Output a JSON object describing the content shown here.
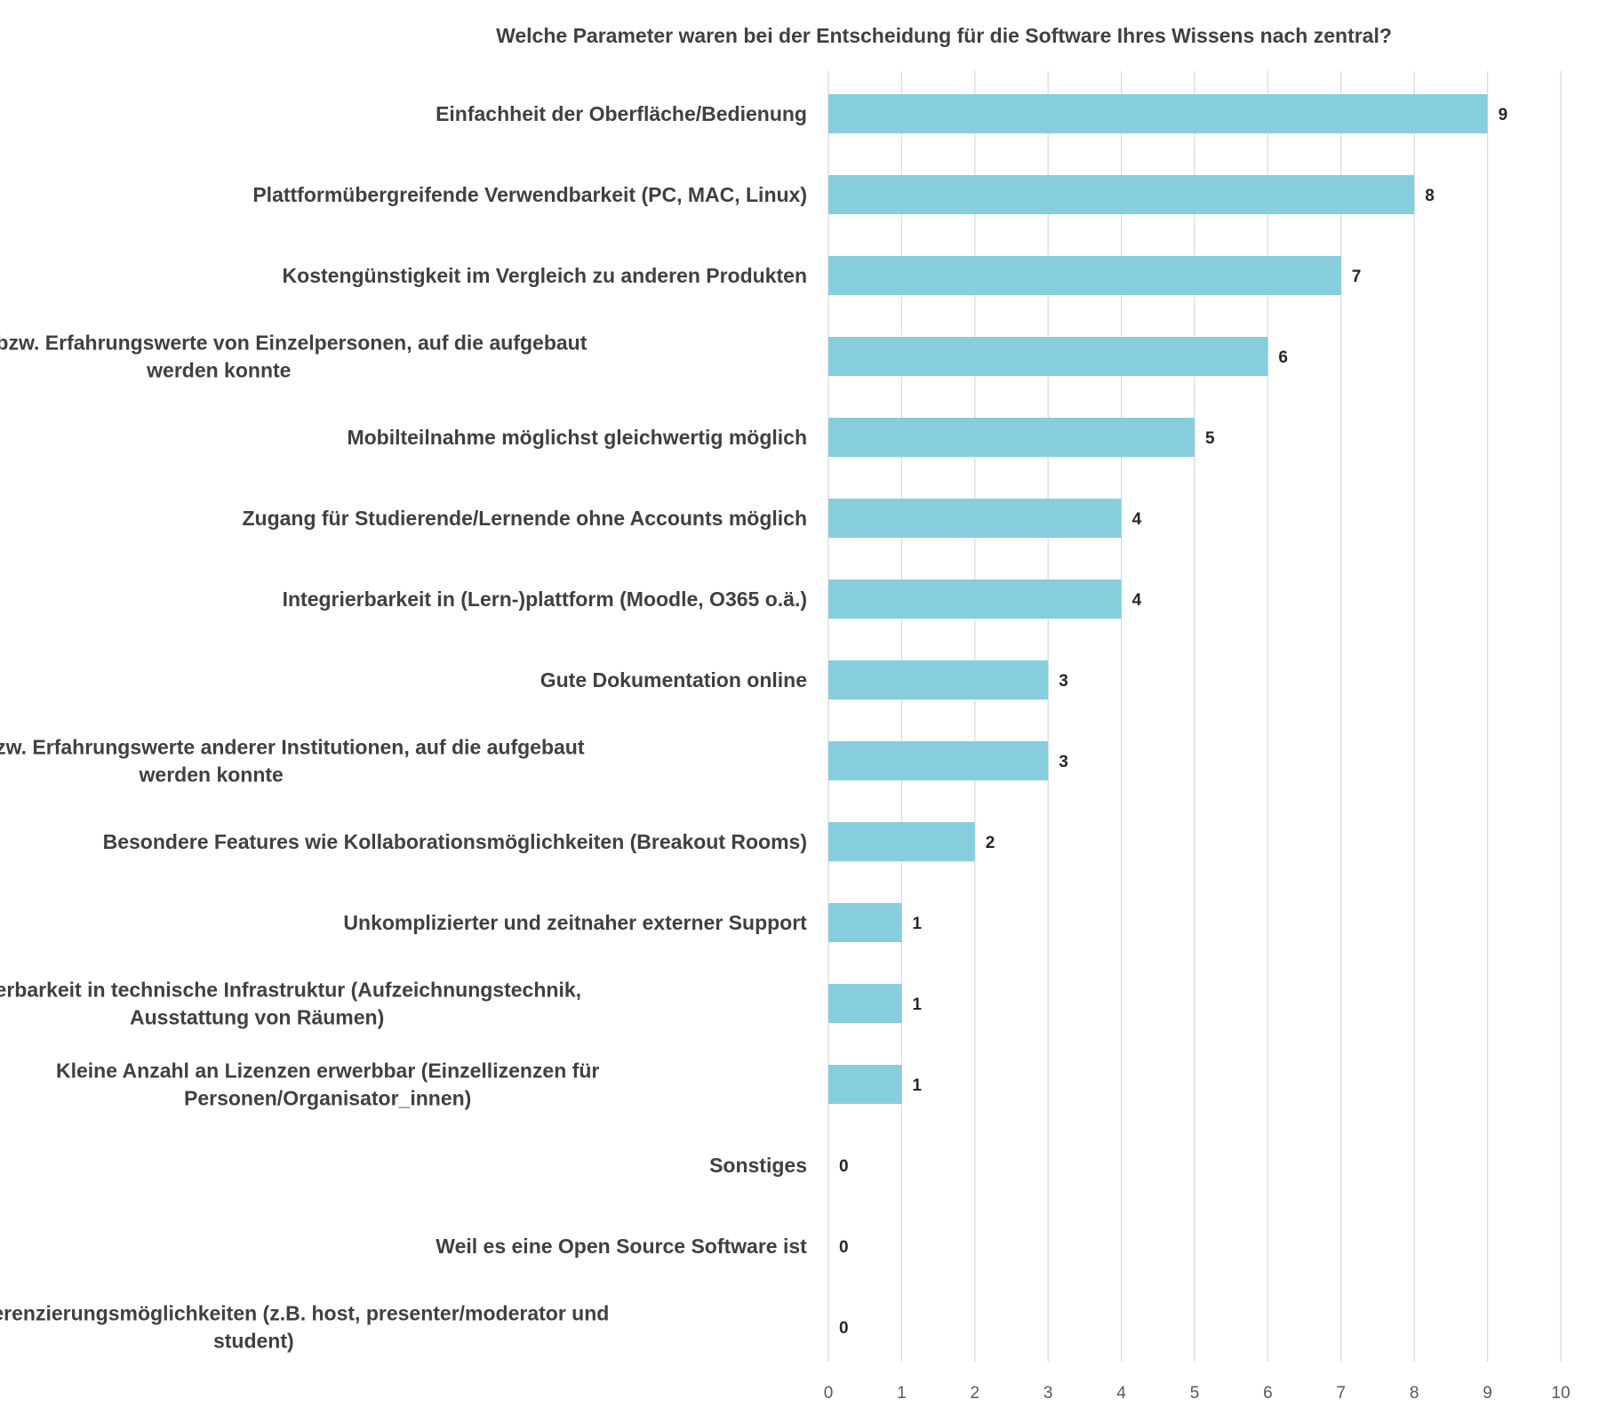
{
  "chart_data": {
    "type": "bar",
    "orientation": "horizontal",
    "title": "Welche Parameter waren bei der Entscheidung für die Software Ihres Wissens nach zentral?",
    "xlabel": "",
    "ylabel": "",
    "xlim": [
      0,
      10
    ],
    "x_ticks": [
      "0",
      "1",
      "2",
      "3",
      "4",
      "5",
      "6",
      "7",
      "8",
      "9",
      "10"
    ],
    "grid": "vertical",
    "legend": "none",
    "bar_color": "#86cede",
    "categories": [
      [
        "Einfachheit der Oberfläche/Bedienung"
      ],
      [
        "Plattformübergreifende Verwendbarkeit (PC, MAC, Linux)"
      ],
      [
        "Kostengünstigkeit im Vergleich zu anderen Produkten"
      ],
      [
        "Vorkenntnisse bzw. Erfahrungswerte von Einzelpersonen, auf die aufgebaut",
        "werden konnte"
      ],
      [
        "Mobilteilnahme möglichst gleichwertig möglich"
      ],
      [
        "Zugang für Studierende/Lernende ohne Accounts möglich"
      ],
      [
        "Integrierbarkeit in (Lern-)plattform (Moodle, O365 o.ä.)"
      ],
      [
        "Gute Dokumentation online"
      ],
      [
        "Vorkenntnisse bzw. Erfahrungswerte anderer Institutionen, auf die aufgebaut",
        "werden konnte"
      ],
      [
        "Besondere Features wie Kollaborationsmöglichkeiten (Breakout Rooms)"
      ],
      [
        "Unkomplizierter und zeitnaher externer Support"
      ],
      [
        "Integrierbarkeit in technische Infrastruktur (Aufzeichnungstechnik,",
        "Ausstattung von Räumen)"
      ],
      [
        "Kleine Anzahl an Lizenzen erwerbbar (Einzellizenzen für",
        "Personen/Organisator_innen)"
      ],
      [
        "Sonstiges"
      ],
      [
        "Weil es eine Open Source Software ist"
      ],
      [
        "Rollendifferenzierungsmöglichkeiten (z.B. host, presenter/moderator und",
        "student)"
      ]
    ],
    "values": [
      9,
      8,
      7,
      6,
      5,
      4,
      4,
      3,
      3,
      2,
      1,
      1,
      1,
      0,
      0,
      0
    ],
    "data_labels": [
      "9",
      "8",
      "7",
      "6",
      "5",
      "4",
      "4",
      "3",
      "3",
      "2",
      "1",
      "1",
      "1",
      "0",
      "0",
      "0"
    ]
  }
}
